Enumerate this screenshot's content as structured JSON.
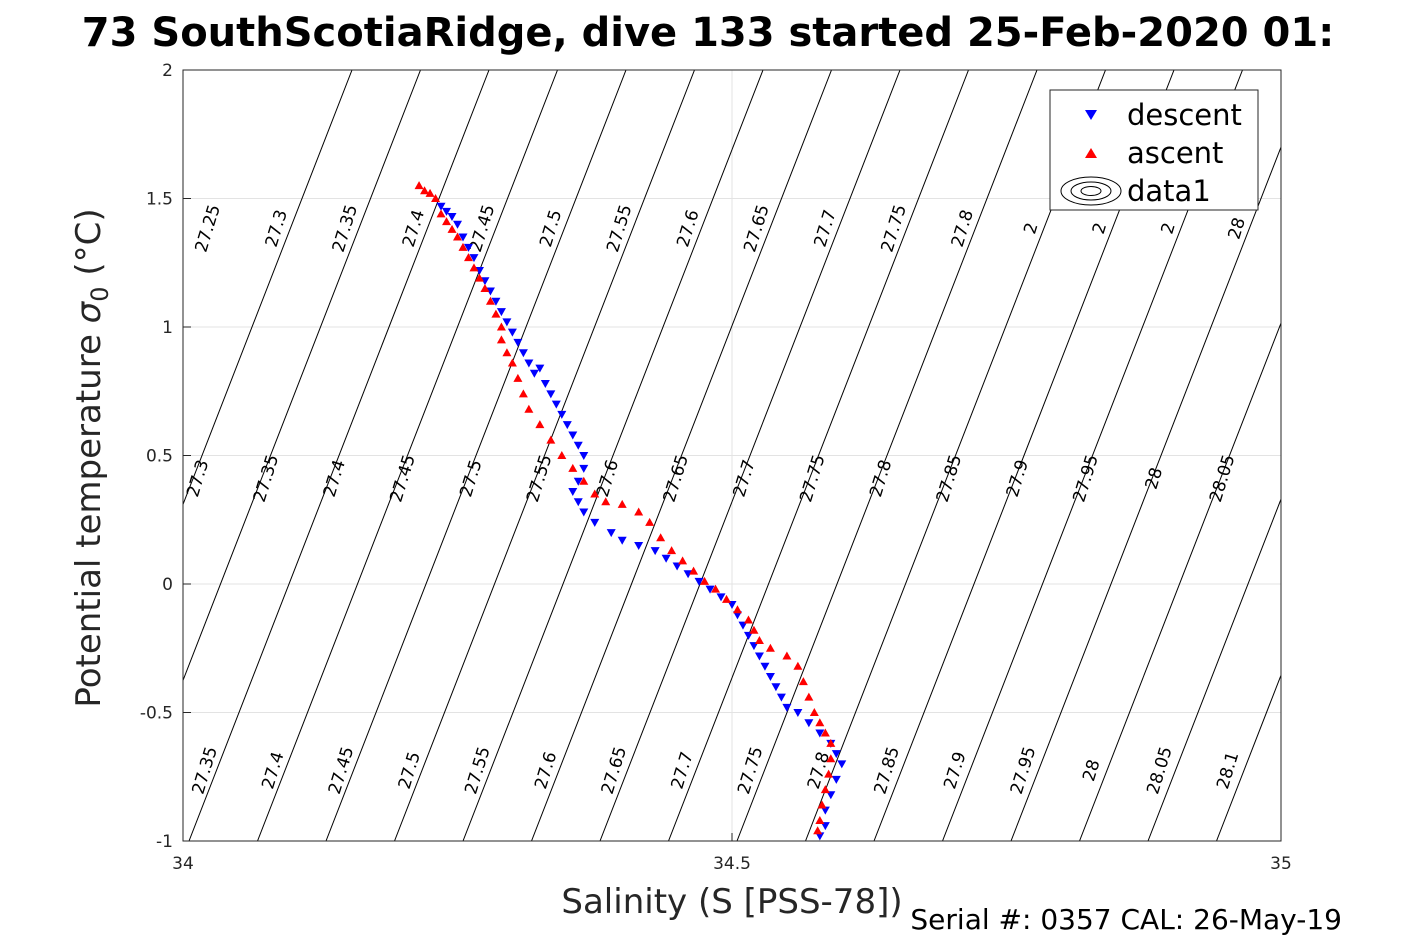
{
  "title": "73 SouthScotiaRidge, dive 133 started 25-Feb-2020 01:",
  "footer": "Serial #: 0357  CAL: 26-May-19",
  "chart_data": {
    "type": "scatter",
    "xlabel": "Salinity (S [PSS-78])",
    "ylabel_main": "Potential temperature ",
    "ylabel_sigma": "σ",
    "ylabel_sub": "0",
    "ylabel_unit": " (°C)",
    "xlim": [
      34,
      35
    ],
    "ylim": [
      -1,
      2
    ],
    "xticks": [
      "34",
      "34.5",
      "35"
    ],
    "yticks": [
      "-1",
      "-0.5",
      "0",
      "0.5",
      "1",
      "1.5",
      "2"
    ],
    "grid": true,
    "legend_position": "top-right",
    "legend": [
      "descent",
      "ascent",
      "data1"
    ],
    "colors": {
      "descent": "#0000ff",
      "ascent": "#ff0000",
      "contour": "#000000"
    },
    "isopycnal_labels": {
      "top": [
        "27.25",
        "27.3",
        "27.35",
        "27.4",
        "27.45",
        "27.5",
        "27.55",
        "27.6",
        "27.65",
        "27.7",
        "27.75",
        "27.8",
        "2",
        "2",
        "2",
        "28"
      ],
      "middle": [
        "27.3",
        "27.35",
        "27.4",
        "27.45",
        "27.5",
        "27.55",
        "27.6",
        "27.65",
        "27.7",
        "27.75",
        "27.8",
        "27.85",
        "27.9",
        "27.95",
        "28",
        "28.05"
      ],
      "bottom": [
        "27.35",
        "27.4",
        "27.45",
        "27.5",
        "27.55",
        "27.6",
        "27.65",
        "27.7",
        "27.75",
        "27.8",
        "27.85",
        "27.9",
        "27.95",
        "28",
        "28.05",
        "28.1"
      ]
    },
    "series": [
      {
        "name": "descent",
        "marker": "triangle-down",
        "points": [
          [
            34.235,
            1.47
          ],
          [
            34.24,
            1.45
          ],
          [
            34.245,
            1.43
          ],
          [
            34.25,
            1.4
          ],
          [
            34.255,
            1.35
          ],
          [
            34.26,
            1.31
          ],
          [
            34.265,
            1.27
          ],
          [
            34.27,
            1.22
          ],
          [
            34.275,
            1.18
          ],
          [
            34.28,
            1.14
          ],
          [
            34.285,
            1.1
          ],
          [
            34.29,
            1.06
          ],
          [
            34.295,
            1.02
          ],
          [
            34.3,
            0.98
          ],
          [
            34.305,
            0.94
          ],
          [
            34.31,
            0.9
          ],
          [
            34.315,
            0.86
          ],
          [
            34.32,
            0.82
          ],
          [
            34.325,
            0.84
          ],
          [
            34.33,
            0.78
          ],
          [
            34.335,
            0.74
          ],
          [
            34.34,
            0.7
          ],
          [
            34.345,
            0.66
          ],
          [
            34.35,
            0.62
          ],
          [
            34.355,
            0.58
          ],
          [
            34.36,
            0.54
          ],
          [
            34.365,
            0.5
          ],
          [
            34.365,
            0.45
          ],
          [
            34.36,
            0.4
          ],
          [
            34.355,
            0.36
          ],
          [
            34.36,
            0.32
          ],
          [
            34.365,
            0.28
          ],
          [
            34.375,
            0.24
          ],
          [
            34.39,
            0.2
          ],
          [
            34.4,
            0.17
          ],
          [
            34.415,
            0.15
          ],
          [
            34.43,
            0.13
          ],
          [
            34.44,
            0.1
          ],
          [
            34.45,
            0.07
          ],
          [
            34.46,
            0.04
          ],
          [
            34.47,
            0.01
          ],
          [
            34.48,
            -0.02
          ],
          [
            34.49,
            -0.05
          ],
          [
            34.5,
            -0.08
          ],
          [
            34.505,
            -0.12
          ],
          [
            34.51,
            -0.16
          ],
          [
            34.515,
            -0.2
          ],
          [
            34.52,
            -0.24
          ],
          [
            34.525,
            -0.28
          ],
          [
            34.53,
            -0.32
          ],
          [
            34.535,
            -0.36
          ],
          [
            34.54,
            -0.4
          ],
          [
            34.545,
            -0.44
          ],
          [
            34.55,
            -0.48
          ],
          [
            34.56,
            -0.5
          ],
          [
            34.57,
            -0.54
          ],
          [
            34.58,
            -0.58
          ],
          [
            34.59,
            -0.62
          ],
          [
            34.595,
            -0.66
          ],
          [
            34.6,
            -0.7
          ],
          [
            34.595,
            -0.76
          ],
          [
            34.59,
            -0.82
          ],
          [
            34.585,
            -0.88
          ],
          [
            34.585,
            -0.94
          ],
          [
            34.58,
            -0.98
          ]
        ]
      },
      {
        "name": "ascent",
        "marker": "triangle-up",
        "points": [
          [
            34.215,
            1.55
          ],
          [
            34.22,
            1.53
          ],
          [
            34.225,
            1.52
          ],
          [
            34.23,
            1.5
          ],
          [
            34.235,
            1.44
          ],
          [
            34.24,
            1.41
          ],
          [
            34.245,
            1.38
          ],
          [
            34.25,
            1.35
          ],
          [
            34.255,
            1.31
          ],
          [
            34.26,
            1.27
          ],
          [
            34.265,
            1.23
          ],
          [
            34.27,
            1.19
          ],
          [
            34.275,
            1.15
          ],
          [
            34.28,
            1.1
          ],
          [
            34.285,
            1.05
          ],
          [
            34.29,
            1.0
          ],
          [
            34.29,
            0.95
          ],
          [
            34.295,
            0.9
          ],
          [
            34.3,
            0.86
          ],
          [
            34.305,
            0.8
          ],
          [
            34.31,
            0.74
          ],
          [
            34.315,
            0.68
          ],
          [
            34.325,
            0.62
          ],
          [
            34.335,
            0.56
          ],
          [
            34.345,
            0.5
          ],
          [
            34.355,
            0.45
          ],
          [
            34.365,
            0.4
          ],
          [
            34.375,
            0.35
          ],
          [
            34.385,
            0.32
          ],
          [
            34.4,
            0.31
          ],
          [
            34.415,
            0.28
          ],
          [
            34.425,
            0.24
          ],
          [
            34.435,
            0.18
          ],
          [
            34.445,
            0.13
          ],
          [
            34.455,
            0.09
          ],
          [
            34.465,
            0.05
          ],
          [
            34.475,
            0.01
          ],
          [
            34.485,
            -0.02
          ],
          [
            34.495,
            -0.06
          ],
          [
            34.505,
            -0.1
          ],
          [
            34.515,
            -0.14
          ],
          [
            34.52,
            -0.18
          ],
          [
            34.525,
            -0.22
          ],
          [
            34.535,
            -0.25
          ],
          [
            34.55,
            -0.28
          ],
          [
            34.56,
            -0.32
          ],
          [
            34.565,
            -0.38
          ],
          [
            34.57,
            -0.44
          ],
          [
            34.575,
            -0.5
          ],
          [
            34.58,
            -0.54
          ],
          [
            34.585,
            -0.58
          ],
          [
            34.59,
            -0.62
          ],
          [
            34.59,
            -0.68
          ],
          [
            34.588,
            -0.74
          ],
          [
            34.585,
            -0.8
          ],
          [
            34.582,
            -0.86
          ],
          [
            34.58,
            -0.92
          ],
          [
            34.578,
            -0.96
          ]
        ]
      }
    ]
  }
}
